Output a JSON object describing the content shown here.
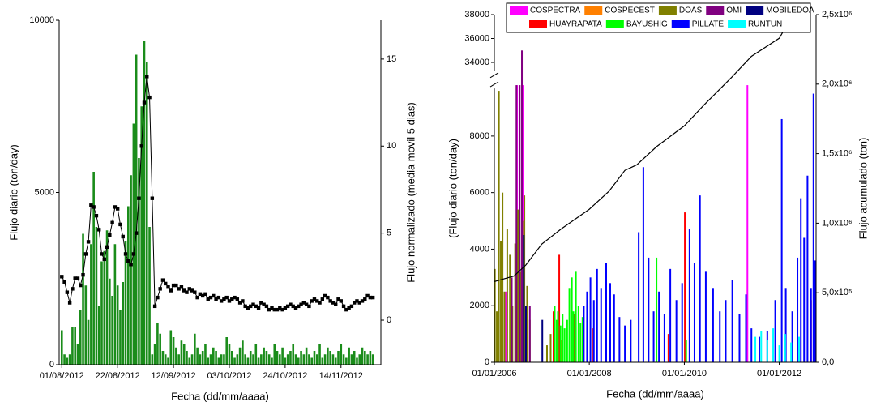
{
  "chart_data": [
    {
      "type": "bar",
      "xlabel": "Fecha (dd/mm/aaaa)",
      "ylabel": "Flujo diario (ton/day)",
      "y2label": "Flujo normalizado (media movil 5 dias)",
      "x": [
        "2012-08-01",
        "2012-08-02",
        "2012-08-03",
        "2012-08-04",
        "2012-08-05",
        "2012-08-06",
        "2012-08-07",
        "2012-08-08",
        "2012-08-09",
        "2012-08-10",
        "2012-08-11",
        "2012-08-12",
        "2012-08-13",
        "2012-08-14",
        "2012-08-15",
        "2012-08-16",
        "2012-08-17",
        "2012-08-18",
        "2012-08-19",
        "2012-08-20",
        "2012-08-21",
        "2012-08-22",
        "2012-08-23",
        "2012-08-24",
        "2012-08-25",
        "2012-08-26",
        "2012-08-27",
        "2012-08-28",
        "2012-08-29",
        "2012-08-30",
        "2012-08-31",
        "2012-09-01",
        "2012-09-02",
        "2012-09-03",
        "2012-09-04",
        "2012-09-05",
        "2012-09-06",
        "2012-09-07",
        "2012-09-08",
        "2012-09-09",
        "2012-09-10",
        "2012-09-11",
        "2012-09-12",
        "2012-09-13",
        "2012-09-14",
        "2012-09-15",
        "2012-09-16",
        "2012-09-17",
        "2012-09-18",
        "2012-09-19",
        "2012-09-20",
        "2012-09-21",
        "2012-09-22",
        "2012-09-23",
        "2012-09-24",
        "2012-09-25",
        "2012-09-26",
        "2012-09-27",
        "2012-09-28",
        "2012-09-29",
        "2012-09-30",
        "2012-10-01",
        "2012-10-02",
        "2012-10-03",
        "2012-10-04",
        "2012-10-05",
        "2012-10-06",
        "2012-10-07",
        "2012-10-08",
        "2012-10-09",
        "2012-10-10",
        "2012-10-11",
        "2012-10-12",
        "2012-10-13",
        "2012-10-14",
        "2012-10-15",
        "2012-10-16",
        "2012-10-17",
        "2012-10-18",
        "2012-10-19",
        "2012-10-20",
        "2012-10-21",
        "2012-10-22",
        "2012-10-23",
        "2012-10-24",
        "2012-10-25",
        "2012-10-26",
        "2012-10-27",
        "2012-10-28",
        "2012-10-29",
        "2012-10-30",
        "2012-10-31",
        "2012-11-01",
        "2012-11-02",
        "2012-11-03",
        "2012-11-04",
        "2012-11-05",
        "2012-11-06",
        "2012-11-07",
        "2012-11-08",
        "2012-11-09",
        "2012-11-10",
        "2012-11-11",
        "2012-11-12",
        "2012-11-13",
        "2012-11-14",
        "2012-11-15",
        "2012-11-16",
        "2012-11-17",
        "2012-11-18",
        "2012-11-19",
        "2012-11-20",
        "2012-11-21",
        "2012-11-22",
        "2012-11-23",
        "2012-11-24",
        "2012-11-25",
        "2012-11-26"
      ],
      "series": [
        {
          "color": "#1a8c1a",
          "values": [
            1000,
            300,
            200,
            300,
            1100,
            1100,
            600,
            1600,
            3800,
            2300,
            1300,
            3500,
            5600,
            4000,
            1700,
            3000,
            3300,
            3900,
            2500,
            2000,
            3500,
            2300,
            1600,
            2400,
            3600,
            4600,
            5500,
            7000,
            9000,
            6000,
            7500,
            9400,
            8800,
            4000,
            300,
            600,
            1200,
            900,
            400,
            300,
            200,
            1000,
            800,
            500,
            300,
            700,
            600,
            400,
            200,
            300,
            900,
            500,
            300,
            400,
            600,
            200,
            300,
            500,
            400,
            200,
            300,
            300,
            800,
            600,
            400,
            200,
            300,
            500,
            700,
            300,
            200,
            400,
            300,
            600,
            200,
            300,
            500,
            400,
            300,
            200,
            600,
            400,
            300,
            500,
            200,
            300,
            400,
            600,
            300,
            200,
            400,
            300,
            500,
            300,
            200,
            400,
            300,
            600,
            200,
            300,
            500,
            400,
            300,
            200,
            400,
            600,
            300,
            200,
            500,
            300,
            400,
            200,
            300,
            500,
            400,
            300,
            400,
            300
          ]
        },
        {
          "type": "line",
          "axis": "y2",
          "color": "#000000",
          "values": [
            2.5,
            2.2,
            1.6,
            1.0,
            1.8,
            2.4,
            2.4,
            2.0,
            2.6,
            3.8,
            4.5,
            6.6,
            6.5,
            6.0,
            5.2,
            3.8,
            3.5,
            4.2,
            4.9,
            5.6,
            6.5,
            6.4,
            5.5,
            4.8,
            3.8,
            3.4,
            3.2,
            3.8,
            5.0,
            7.0,
            10.0,
            12.5,
            14.0,
            12.8,
            7.0,
            0.8,
            1.3,
            1.8,
            2.3,
            2.1,
            1.9,
            1.7,
            2.0,
            2.0,
            1.8,
            1.9,
            1.7,
            1.6,
            1.8,
            1.7,
            1.6,
            1.3,
            1.5,
            1.4,
            1.5,
            1.2,
            1.3,
            1.4,
            1.2,
            1.3,
            1.1,
            1.2,
            1.3,
            1.1,
            1.2,
            1.3,
            1.2,
            1.0,
            1.1,
            0.8,
            0.7,
            0.8,
            0.9,
            0.8,
            0.7,
            1.0,
            0.9,
            0.8,
            0.6,
            0.7,
            0.6,
            0.6,
            0.7,
            0.6,
            0.7,
            0.8,
            0.9,
            0.8,
            0.7,
            0.8,
            0.9,
            1.0,
            0.9,
            0.8,
            1.1,
            1.2,
            1.1,
            1.0,
            1.2,
            1.4,
            1.3,
            1.1,
            1.0,
            0.9,
            1.2,
            1.1,
            0.8,
            0.6,
            0.7,
            0.8,
            1.0,
            1.1,
            1.0,
            1.1,
            1.2,
            1.4,
            1.3,
            1.3
          ]
        }
      ],
      "xlim": [
        "2012-07-31",
        "2012-11-29"
      ],
      "xticks": [
        {
          "value": "2012-08-01",
          "label": "01/08/2012"
        },
        {
          "value": "2012-08-22",
          "label": "22/08/2012"
        },
        {
          "value": "2012-09-12",
          "label": "12/09/2012"
        },
        {
          "value": "2012-10-03",
          "label": "03/10/2012"
        },
        {
          "value": "2012-10-24",
          "label": "24/10/2012"
        },
        {
          "value": "2012-11-14",
          "label": "14/11/2012"
        }
      ],
      "ylim": [
        0,
        10000
      ],
      "yticks": [
        0,
        5000,
        10000
      ],
      "y2lim": [
        -2.56,
        17.23
      ],
      "y2ticks": [
        0,
        5,
        10,
        15
      ],
      "grid": false
    },
    {
      "type": "bar",
      "xlabel": "Fecha (dd/mm/aaaa)",
      "ylabel": "(Flujo diario (ton/day)",
      "y2label": "Flujo acumulado (ton)",
      "legend": "top",
      "series": [
        {
          "name": "COSPECTRA",
          "color": "#ff00ff",
          "x": [
            "2006-04-01",
            "2006-06-25",
            "2006-08-10",
            "2011-05-01"
          ],
          "values": [
            2500,
            9800,
            9800,
            9800
          ]
        },
        {
          "name": "COSPECEST",
          "color": "#ff8000",
          "x": [
            "2006-03-01",
            "2007-06-01"
          ],
          "values": [
            1200,
            800
          ]
        },
        {
          "name": "DOAS",
          "color": "#808000",
          "x": [
            "2006-01-05",
            "2006-01-20",
            "2006-02-05",
            "2006-02-20",
            "2006-03-05",
            "2006-03-20",
            "2006-04-10",
            "2006-05-01",
            "2006-05-20",
            "2006-06-10",
            "2006-07-01",
            "2006-07-20",
            "2006-08-05",
            "2006-08-20",
            "2006-09-10",
            "2006-10-01",
            "2007-02-10",
            "2007-03-10"
          ],
          "values": [
            3300,
            1800,
            9600,
            4300,
            6000,
            2500,
            4700,
            3800,
            2000,
            4200,
            5400,
            3200,
            5000,
            5900,
            2700,
            1500,
            600,
            1000
          ]
        },
        {
          "name": "OMI",
          "color": "#800080",
          "x": [
            "2006-05-15",
            "2006-06-20",
            "2006-07-15",
            "2006-08-01",
            "2006-10-01"
          ],
          "values": [
            3000,
            9800,
            9800,
            35000,
            2000
          ]
        },
        {
          "name": "MOBILEDOA",
          "color": "#000080",
          "x": [
            "2006-08-15",
            "2006-09-01",
            "2007-01-05"
          ],
          "values": [
            4500,
            2000,
            1500
          ]
        },
        {
          "name": "HUAYRAPATA",
          "color": "#ff0000",
          "x": [
            "2007-04-01",
            "2007-05-15",
            "2007-09-10",
            "2008-02-01",
            "2009-09-01",
            "2010-01-05",
            "2012-09-01"
          ],
          "values": [
            1800,
            3800,
            1700,
            1200,
            1000,
            5300,
            2200
          ]
        },
        {
          "name": "BAYUSHIG",
          "color": "#00ff00",
          "x": [
            "2007-04-10",
            "2007-04-25",
            "2007-05-05",
            "2007-05-25",
            "2007-06-10",
            "2007-06-25",
            "2007-07-15",
            "2007-08-01",
            "2007-08-20",
            "2007-09-01",
            "2007-09-20",
            "2007-10-10",
            "2007-10-25",
            "2007-11-10",
            "2009-06-01",
            "2010-01-15"
          ],
          "values": [
            2000,
            1500,
            1800,
            1300,
            1700,
            1200,
            1500,
            2600,
            3000,
            1800,
            3200,
            2000,
            1400,
            1600,
            3700,
            800
          ]
        },
        {
          "name": "PILLATE",
          "color": "#0000ff",
          "x": [
            "2007-11-20",
            "2007-12-15",
            "2008-01-10",
            "2008-02-05",
            "2008-03-01",
            "2008-04-01",
            "2008-05-10",
            "2008-06-10",
            "2008-07-10",
            "2008-08-20",
            "2008-10-01",
            "2008-11-15",
            "2009-01-15",
            "2009-02-20",
            "2009-04-01",
            "2009-05-10",
            "2009-06-20",
            "2009-08-01",
            "2009-09-15",
            "2009-11-01",
            "2009-12-15",
            "2010-02-10",
            "2010-03-20",
            "2010-05-01",
            "2010-06-15",
            "2010-08-10",
            "2010-10-01",
            "2010-11-15",
            "2011-01-05",
            "2011-03-01",
            "2011-04-20",
            "2011-06-01",
            "2011-08-01",
            "2011-10-01",
            "2011-12-01",
            "2012-01-20",
            "2012-02-20",
            "2012-04-10",
            "2012-05-20",
            "2012-06-15",
            "2012-07-10",
            "2012-08-05",
            "2012-09-01",
            "2012-09-20",
            "2012-10-01"
          ],
          "values": [
            2000,
            2500,
            3000,
            2200,
            3300,
            2600,
            3500,
            2800,
            2400,
            1600,
            1300,
            1500,
            4600,
            6900,
            3700,
            1800,
            2500,
            1700,
            3300,
            2200,
            2800,
            4700,
            3500,
            5900,
            3200,
            2600,
            1800,
            2200,
            2900,
            1700,
            2400,
            1200,
            900,
            1100,
            2200,
            8600,
            2600,
            1800,
            3700,
            5800,
            4400,
            6600,
            2600,
            9500,
            3600
          ]
        },
        {
          "name": "RUNTUN",
          "color": "#00ffff",
          "x": [
            "2011-07-01",
            "2011-08-15",
            "2011-10-01",
            "2011-11-15",
            "2012-01-01",
            "2012-02-15",
            "2012-04-01",
            "2012-06-01"
          ],
          "values": [
            900,
            1100,
            800,
            1200,
            600,
            1000,
            700,
            900
          ]
        },
        {
          "type": "line",
          "axis": "y2",
          "color": "#000000",
          "x": [
            "2006-01-01",
            "2006-06-01",
            "2006-09-01",
            "2007-01-01",
            "2007-06-01",
            "2008-01-01",
            "2008-06-01",
            "2008-10-01",
            "2009-01-01",
            "2009-06-01",
            "2010-01-01",
            "2010-06-01",
            "2011-01-01",
            "2011-06-01",
            "2012-01-01",
            "2012-03-15"
          ],
          "values": [
            580000,
            620000,
            700000,
            850000,
            960000,
            1100000,
            1230000,
            1380000,
            1420000,
            1550000,
            1700000,
            1850000,
            2050000,
            2200000,
            2330000,
            2450000
          ]
        }
      ],
      "xlim": [
        "2006-01-01",
        "2012-10-10"
      ],
      "xticks": [
        {
          "value": "2006-01-01",
          "label": "01/01/2006"
        },
        {
          "value": "2008-01-01",
          "label": "01/01/2008"
        },
        {
          "value": "2010-01-01",
          "label": "01/01/2010"
        },
        {
          "value": "2012-01-01",
          "label": "01/01/2012"
        }
      ],
      "ylim": [
        0,
        38000
      ],
      "ybreak": [
        9800,
        33000
      ],
      "yticks": [
        0,
        2000,
        4000,
        6000,
        8000,
        34000,
        36000,
        38000
      ],
      "y2lim": [
        0,
        2500000
      ],
      "y2ticks": [
        {
          "value": 0,
          "label": "0,0"
        },
        {
          "value": 500000,
          "label": "5,0x10⁵"
        },
        {
          "value": 1000000,
          "label": "1,0x10⁶"
        },
        {
          "value": 1500000,
          "label": "1,5x10⁶"
        },
        {
          "value": 2000000,
          "label": "2,0x10⁶"
        },
        {
          "value": 2500000,
          "label": "2,5x10⁶"
        }
      ],
      "grid": false
    }
  ]
}
